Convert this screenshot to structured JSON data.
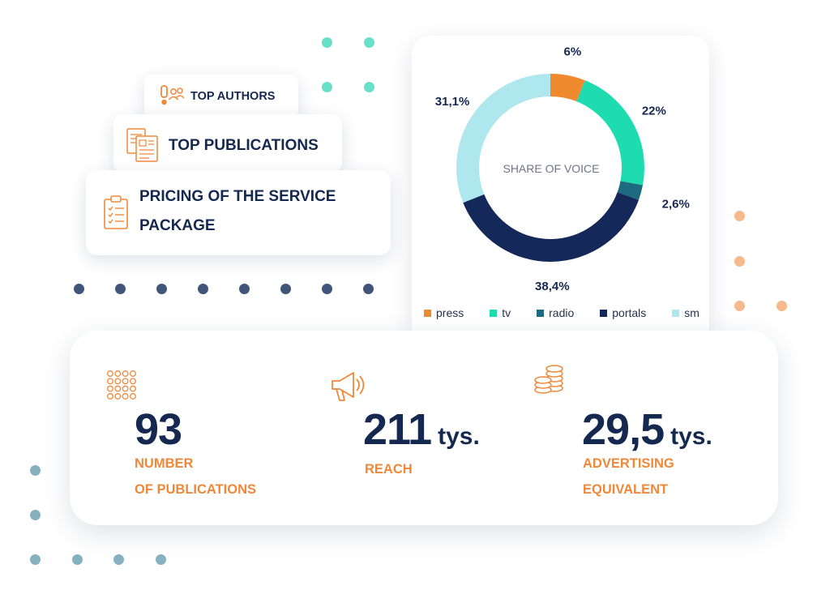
{
  "colors": {
    "navy": "#15284f",
    "orange": "#f0883a",
    "teal": "#22d9b0",
    "mint_dot": "#68e0c8",
    "peach_dot": "#f5b98c",
    "slate_dot": "#41557a",
    "blue_dot": "#86b1c1"
  },
  "tags": {
    "top_authors": "TOP AUTHORS",
    "top_publications": "TOP PUBLICATIONS",
    "pricing_line1": "PRICING OF THE SERVICE",
    "pricing_line2": "PACKAGE"
  },
  "chart_data": {
    "type": "pie",
    "variant": "donut",
    "title": "SHARE OF VOICE",
    "legend_position": "bottom",
    "slices": [
      {
        "name": "press",
        "value": 6,
        "label": "6%",
        "color": "#ef8a2f"
      },
      {
        "name": "tv",
        "value": 22,
        "label": "22%",
        "color": "#1edcb0"
      },
      {
        "name": "radio",
        "value": 2.6,
        "label": "2,6%",
        "color": "#1d6b80"
      },
      {
        "name": "portals",
        "value": 38.4,
        "label": "38,4%",
        "color": "#14295a"
      },
      {
        "name": "sm",
        "value": 31.1,
        "label": "31,1%",
        "color": "#aee8ee"
      }
    ]
  },
  "stats": [
    {
      "value": "93",
      "unit": "",
      "label_line1": "NUMBER",
      "label_line2": "OF PUBLICATIONS",
      "icon": "grid-network-icon"
    },
    {
      "value": "211",
      "unit": "tys.",
      "label_line1": "REACH",
      "label_line2": "",
      "icon": "megaphone-icon"
    },
    {
      "value": "29,5",
      "unit": "tys.",
      "label_line1": "ADVERTISING",
      "label_line2": "EQUIVALENT",
      "icon": "coins-icon"
    }
  ]
}
